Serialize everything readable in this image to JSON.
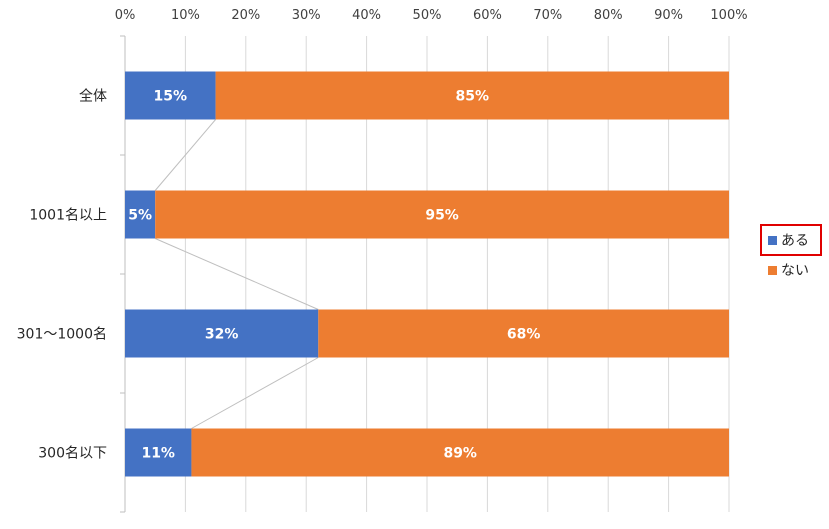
{
  "chart_data": {
    "type": "bar",
    "orientation": "horizontal",
    "stacked": "percent",
    "categories": [
      "全体",
      "1001名以上",
      "301～1000名",
      "300名以下"
    ],
    "series": [
      {
        "name": "ある",
        "values": [
          15,
          5,
          32,
          11
        ],
        "labels": [
          "15%",
          "5%",
          "32%",
          "11%"
        ],
        "color": "#4472c4"
      },
      {
        "name": "ない",
        "values": [
          85,
          95,
          68,
          89
        ],
        "labels": [
          "85%",
          "95%",
          "68%",
          "89%"
        ],
        "color": "#ed7d31"
      }
    ],
    "x_ticks": [
      "0%",
      "10%",
      "20%",
      "30%",
      "40%",
      "50%",
      "60%",
      "70%",
      "80%",
      "90%",
      "100%"
    ],
    "xlim": [
      0,
      100
    ],
    "x_axis_position": "top",
    "grid": true,
    "series_lines": true,
    "legend": {
      "position": "right",
      "highlighted_entry": "ある",
      "highlight_color": "#e00000"
    }
  }
}
